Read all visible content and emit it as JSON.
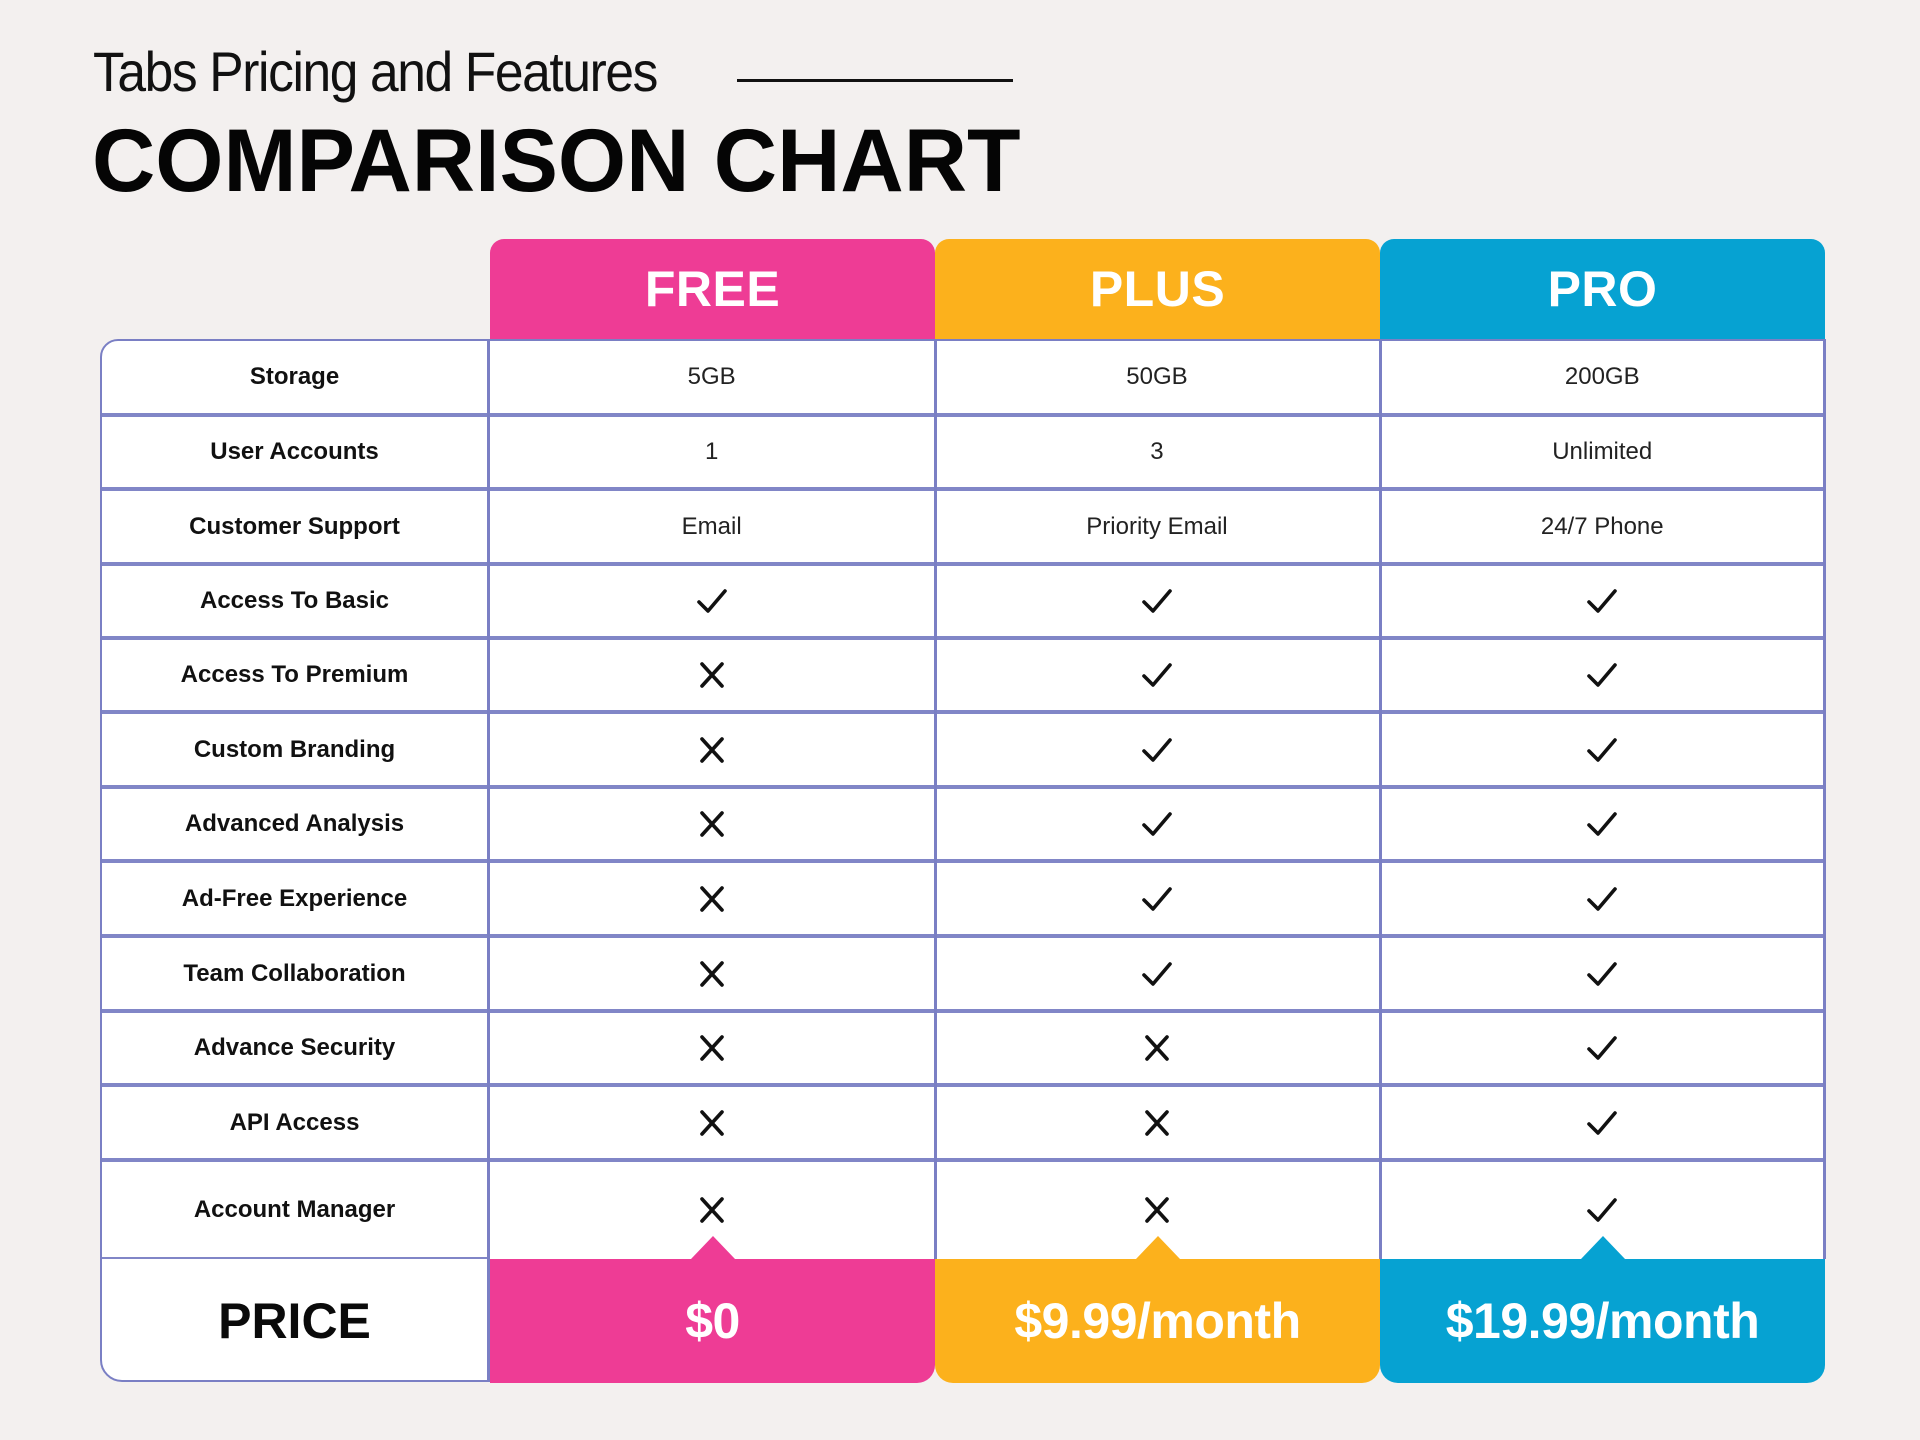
{
  "header": {
    "subtitle": "Tabs Pricing and Features",
    "title": "COMPARISON CHART"
  },
  "colors": {
    "free": "#ee3c95",
    "plus": "#fcb11c",
    "pro": "#06a2d2",
    "grid": "#7a7fc4",
    "background": "#f3f0ef"
  },
  "plans": [
    {
      "name": "FREE",
      "price": "$0"
    },
    {
      "name": "PLUS",
      "price": "$9.99/month"
    },
    {
      "name": "PRO",
      "price": "$19.99/month"
    }
  ],
  "price_label": "PRICE",
  "features": [
    {
      "label": "Storage",
      "values": [
        "5GB",
        "50GB",
        "200GB"
      ]
    },
    {
      "label": "User Accounts",
      "values": [
        "1",
        "3",
        "Unlimited"
      ]
    },
    {
      "label": "Customer Support",
      "values": [
        "Email",
        "Priority Email",
        "24/7 Phone"
      ]
    },
    {
      "label": "Access To Basic",
      "values": [
        "check",
        "check",
        "check"
      ]
    },
    {
      "label": "Access To Premium",
      "values": [
        "x",
        "check",
        "check"
      ]
    },
    {
      "label": "Custom Branding",
      "values": [
        "x",
        "check",
        "check"
      ]
    },
    {
      "label": "Advanced Analysis",
      "values": [
        "x",
        "check",
        "check"
      ]
    },
    {
      "label": "Ad-Free Experience",
      "values": [
        "x",
        "check",
        "check"
      ]
    },
    {
      "label": "Team Collaboration",
      "values": [
        "x",
        "check",
        "check"
      ]
    },
    {
      "label": "Advance Security",
      "values": [
        "x",
        "x",
        "check"
      ]
    },
    {
      "label": "API Access",
      "values": [
        "x",
        "x",
        "check"
      ]
    },
    {
      "label": "Account Manager",
      "values": [
        "x",
        "x",
        "check"
      ]
    }
  ]
}
